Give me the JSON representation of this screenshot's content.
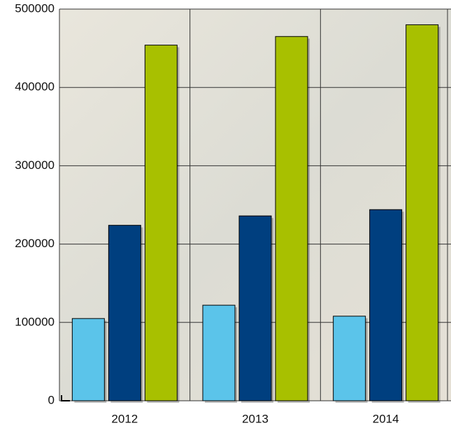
{
  "chart_data": {
    "type": "bar",
    "categories": [
      "2012",
      "2013",
      "2014"
    ],
    "series": [
      {
        "color": "#5bc4ea",
        "values": [
          105000,
          122000,
          108000
        ]
      },
      {
        "color": "#003f7f",
        "values": [
          224000,
          236000,
          244000
        ]
      },
      {
        "color": "#a8c000",
        "values": [
          454000,
          465000,
          480000
        ]
      }
    ],
    "ylim": [
      0,
      500000
    ],
    "yticks": [
      0,
      100000,
      200000,
      300000,
      400000,
      500000
    ],
    "grid": true
  }
}
